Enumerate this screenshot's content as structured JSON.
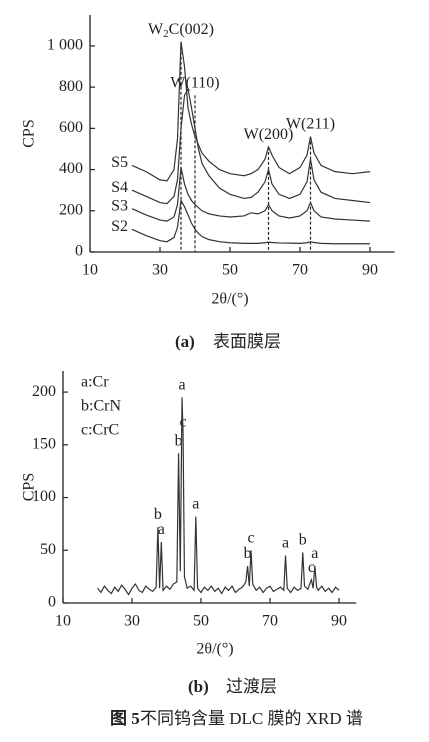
{
  "chart_data": [
    {
      "type": "line",
      "y_label": "CPS",
      "x_label": "2θ/(°)",
      "caption_label": "(a)",
      "caption": "表面膜层",
      "xlim": [
        10,
        97
      ],
      "xticks": [
        10,
        30,
        50,
        70,
        90
      ],
      "ylim": [
        0,
        1150
      ],
      "yticks": [
        0,
        200,
        400,
        600,
        800,
        {
          "value": 1000,
          "label": "1 000"
        }
      ],
      "x": [
        22,
        26,
        30,
        32,
        34,
        35,
        36,
        37,
        38,
        39,
        40,
        41,
        42,
        44,
        47,
        50,
        54,
        56,
        58,
        60,
        61,
        62,
        64,
        67,
        70,
        72,
        73,
        74,
        76,
        80,
        85,
        90
      ],
      "series": [
        {
          "name": "S2",
          "color": "#333333",
          "values": [
            110,
            80,
            55,
            50,
            70,
            120,
            250,
            220,
            180,
            140,
            110,
            90,
            75,
            60,
            50,
            45,
            42,
            42,
            42,
            45,
            48,
            46,
            44,
            43,
            42,
            45,
            50,
            46,
            42,
            40,
            40,
            40
          ]
        },
        {
          "name": "S3",
          "color": "#333333",
          "values": [
            210,
            180,
            155,
            150,
            170,
            230,
            410,
            330,
            280,
            250,
            230,
            215,
            200,
            185,
            175,
            170,
            175,
            190,
            185,
            200,
            230,
            200,
            175,
            165,
            175,
            200,
            240,
            200,
            170,
            160,
            155,
            150
          ]
        },
        {
          "name": "S4",
          "color": "#333333",
          "values": [
            300,
            270,
            240,
            235,
            270,
            350,
            600,
            760,
            790,
            700,
            600,
            500,
            430,
            370,
            310,
            280,
            260,
            265,
            290,
            340,
            400,
            330,
            280,
            260,
            280,
            340,
            450,
            350,
            290,
            260,
            250,
            240
          ]
        },
        {
          "name": "S5",
          "color": "#333333",
          "values": [
            420,
            390,
            350,
            345,
            400,
            550,
            1020,
            900,
            700,
            620,
            560,
            520,
            480,
            440,
            400,
            380,
            370,
            380,
            400,
            450,
            510,
            470,
            410,
            380,
            410,
            470,
            560,
            480,
            420,
            390,
            380,
            390
          ]
        }
      ],
      "annotations": [
        {
          "x": 36,
          "y": 1020,
          "label_parts": [
            "W",
            "2",
            "C(002)"
          ]
        },
        {
          "x": 40,
          "y": 760,
          "label_parts": [
            "W(110)"
          ]
        },
        {
          "x": 61,
          "y": 510,
          "label_parts": [
            "W(200)"
          ]
        },
        {
          "x": 73,
          "y": 560,
          "label_parts": [
            "W(211)"
          ]
        }
      ]
    },
    {
      "type": "line",
      "y_label": "CPS",
      "x_label": "2θ/(°)",
      "caption_label": "(b)",
      "caption": "过渡层",
      "xlim": [
        10,
        95
      ],
      "xticks": [
        10,
        30,
        50,
        70,
        90
      ],
      "ylim": [
        0,
        220
      ],
      "yticks": [
        0,
        50,
        100,
        150,
        200
      ],
      "notes": [
        "a:Cr",
        "b:CrN",
        "c:CrC"
      ],
      "x": [
        20,
        21,
        22,
        23,
        24,
        25,
        26,
        27,
        28,
        29,
        30,
        31,
        32,
        33,
        34,
        35,
        36,
        37,
        37.5,
        38,
        38.5,
        39,
        40,
        41,
        42,
        43,
        43.5,
        44,
        44.5,
        44.8,
        45.2,
        46,
        47,
        48,
        48.5,
        49,
        50,
        51,
        52,
        53,
        54,
        55,
        56,
        57,
        58,
        59,
        60,
        61,
        62,
        63,
        63.5,
        64,
        64.5,
        65,
        66,
        67,
        68,
        69,
        70,
        71,
        72,
        73,
        74,
        74.5,
        75,
        76,
        77,
        78,
        79,
        79.5,
        80,
        81,
        81.5,
        82,
        82.5,
        83,
        83.5,
        84,
        85,
        86,
        87,
        88,
        89,
        90
      ],
      "series": [
        {
          "color": "#333333",
          "values": [
            14,
            10,
            16,
            12,
            9,
            15,
            11,
            17,
            13,
            8,
            14,
            18,
            12,
            10,
            16,
            13,
            11,
            15,
            72,
            14,
            58,
            12,
            16,
            13,
            18,
            20,
            142,
            30,
            195,
            160,
            25,
            14,
            16,
            12,
            82,
            14,
            10,
            15,
            12,
            16,
            11,
            14,
            9,
            15,
            12,
            16,
            10,
            13,
            15,
            20,
            35,
            16,
            50,
            18,
            12,
            15,
            10,
            14,
            16,
            11,
            13,
            15,
            12,
            45,
            14,
            10,
            15,
            12,
            14,
            48,
            16,
            13,
            18,
            22,
            14,
            35,
            15,
            12,
            16,
            11,
            14,
            10,
            15,
            12
          ]
        }
      ],
      "annotations": [
        {
          "x": 37.5,
          "y": 72,
          "label_parts": [
            "b"
          ]
        },
        {
          "x": 38.5,
          "y": 58,
          "label_parts": [
            "a"
          ]
        },
        {
          "x": 43.5,
          "y": 142,
          "label_parts": [
            "b"
          ]
        },
        {
          "x": 44.5,
          "y": 195,
          "label_parts": [
            "a"
          ]
        },
        {
          "x": 44.8,
          "y": 160,
          "label_parts": [
            "c"
          ]
        },
        {
          "x": 48.5,
          "y": 82,
          "label_parts": [
            "a"
          ]
        },
        {
          "x": 63.5,
          "y": 35,
          "label_parts": [
            "b"
          ]
        },
        {
          "x": 64.5,
          "y": 50,
          "label_parts": [
            "c"
          ]
        },
        {
          "x": 74.5,
          "y": 45,
          "label_parts": [
            "a"
          ]
        },
        {
          "x": 79.5,
          "y": 48,
          "label_parts": [
            "b"
          ]
        },
        {
          "x": 82,
          "y": 22,
          "label_parts": [
            "c"
          ]
        },
        {
          "x": 83,
          "y": 35,
          "label_parts": [
            "a"
          ]
        }
      ]
    }
  ],
  "figure_caption": {
    "number": "图 5",
    "text": "不同钨含量 DLC 膜的 XRD 谱"
  }
}
